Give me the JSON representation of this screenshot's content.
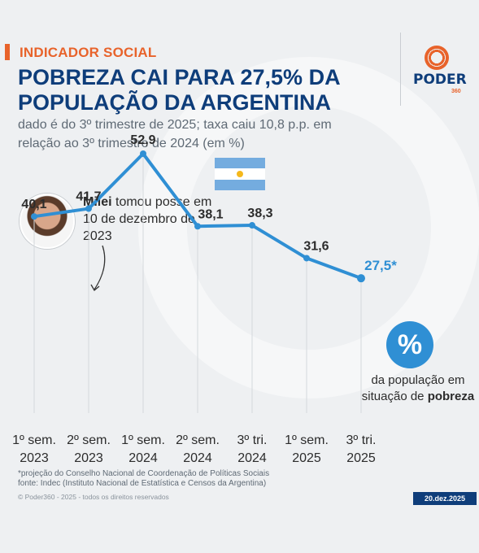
{
  "header": {
    "tag": "INDICADOR SOCIAL",
    "title": "POBREZA CAI PARA 27,5% DA POPULAÇÃO DA ARGENTINA",
    "subtitle": "dado é do 3º trimestre de 2025; taxa caiu 10,8 p.p. em relação ao 3º trimestre de 2024 (em %)"
  },
  "brand": {
    "name": "PODER",
    "number": "360"
  },
  "annotation": {
    "name": "Milei",
    "text": " tomou posse em 10 de dezembro de 2023"
  },
  "highlight": {
    "symbol": "%",
    "caption_prefix": "da população em situação de ",
    "caption_bold": "pobreza"
  },
  "chart_data": {
    "type": "line",
    "categories": [
      [
        "1º sem.",
        "2023"
      ],
      [
        "2º sem.",
        "2023"
      ],
      [
        "1º sem.",
        "2024"
      ],
      [
        "2º sem.",
        "2024"
      ],
      [
        "3º tri.",
        "2024"
      ],
      [
        "1º sem.",
        "2025"
      ],
      [
        "3º tri.",
        "2025"
      ]
    ],
    "values": [
      40.1,
      41.7,
      52.9,
      38.1,
      38.3,
      31.6,
      27.5
    ],
    "labels": [
      "40,1",
      "41,7",
      "52,9",
      "38,1",
      "38,3",
      "31,6",
      "27,5*"
    ],
    "ylim": [
      0,
      60
    ],
    "grid": false,
    "colors": {
      "line": "#2f8fd4",
      "last_label": "#2f8fd4",
      "label": "#2c2c2c"
    }
  },
  "footer": {
    "footnote_1": "*projeção do Conselho Nacional de Coordenação de Políticas Sociais",
    "footnote_2": "fonte: Indec (Instituto Nacional de Estatística e Censos da Argentina)",
    "copyright": "© Poder360 - 2025 - todos os direitos reservados",
    "date": "20.dez.2025"
  },
  "flag_colors": {
    "blue": "#74acdf",
    "white": "#ffffff",
    "sun": "#f5b81c"
  }
}
